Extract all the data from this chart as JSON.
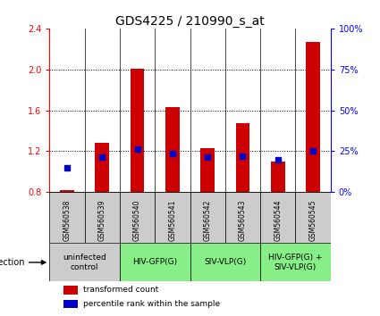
{
  "title": "GDS4225 / 210990_s_at",
  "samples": [
    "GSM560538",
    "GSM560539",
    "GSM560540",
    "GSM560541",
    "GSM560542",
    "GSM560543",
    "GSM560544",
    "GSM560545"
  ],
  "transformed_counts": [
    0.82,
    1.28,
    2.01,
    1.63,
    1.23,
    1.47,
    1.1,
    2.27
  ],
  "blue_y_values": [
    1.04,
    1.14,
    1.22,
    1.18,
    1.14,
    1.15,
    1.12,
    1.2
  ],
  "ylim": [
    0.8,
    2.4
  ],
  "yticks_left": [
    0.8,
    1.2,
    1.6,
    2.0,
    2.4
  ],
  "yticks_right": [
    0,
    25,
    50,
    75,
    100
  ],
  "bar_color": "#cc0000",
  "blue_color": "#0000cc",
  "bar_bottom": 0.8,
  "groups": [
    {
      "label": "uninfected\ncontrol",
      "start": 0,
      "end": 2,
      "color": "#cccccc"
    },
    {
      "label": "HIV-GFP(G)",
      "start": 2,
      "end": 4,
      "color": "#88ee88"
    },
    {
      "label": "SIV-VLP(G)",
      "start": 4,
      "end": 6,
      "color": "#88ee88"
    },
    {
      "label": "HIV-GFP(G) +\nSIV-VLP(G)",
      "start": 6,
      "end": 8,
      "color": "#88ee88"
    }
  ],
  "sample_box_color": "#cccccc",
  "infection_label": "infection",
  "legend_items": [
    {
      "color": "#cc0000",
      "label": "transformed count"
    },
    {
      "color": "#0000cc",
      "label": "percentile rank within the sample"
    }
  ],
  "title_fontsize": 10,
  "tick_fontsize": 7,
  "bar_width": 0.4
}
